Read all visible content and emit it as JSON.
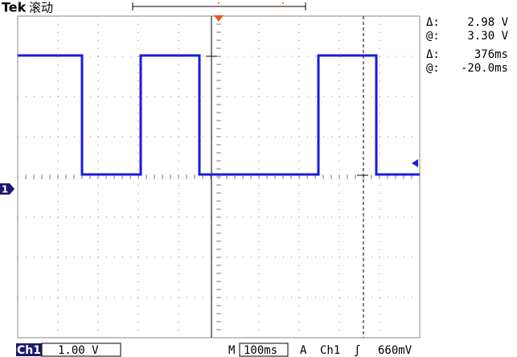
{
  "header": {
    "brand": "Tek",
    "mode": "滚动"
  },
  "ground_marker": "1",
  "readouts": [
    {
      "symbol": "Δ:",
      "value": "2.98 V"
    },
    {
      "symbol": "@:",
      "value": "3.30 V"
    },
    {
      "symbol": "Δ:",
      "value": "376ms"
    },
    {
      "symbol": "@:",
      "value": "-20.0ms"
    }
  ],
  "footer": {
    "channel": "Ch1",
    "scale": "1.00 V",
    "time_label": "M",
    "timebase": "100ms",
    "trigger_label": "A",
    "trigger_source": "Ch1",
    "trigger_slope": "ʃ",
    "trigger_level": "660mV"
  }
}
